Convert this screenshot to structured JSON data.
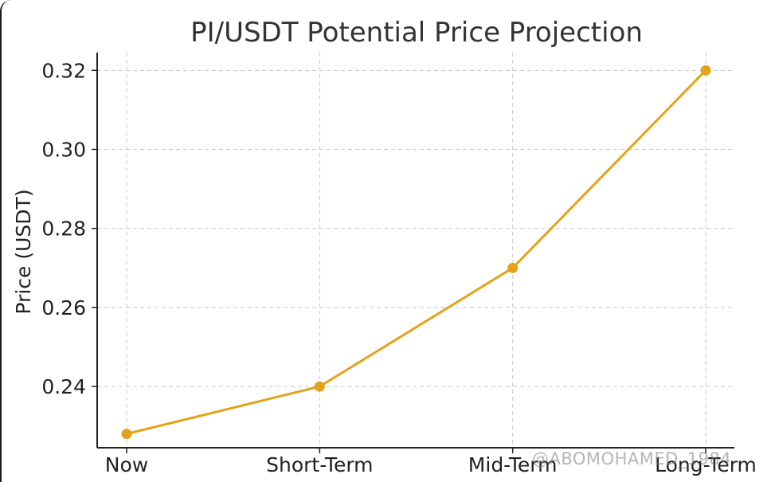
{
  "chart_data": {
    "type": "line",
    "title": "PI/USDT Potential Price Projection",
    "xlabel": "",
    "ylabel": "Price (USDT)",
    "categories": [
      "Now",
      "Short-Term",
      "Mid-Term",
      "Long-Term"
    ],
    "series": [
      {
        "values": [
          0.228,
          0.24,
          0.27,
          0.32
        ],
        "color": "#E3A21A"
      }
    ],
    "yticks": [
      "0.24",
      "0.26",
      "0.28",
      "0.30",
      "0.32"
    ],
    "ytick_values": [
      0.24,
      0.26,
      0.28,
      0.3,
      0.32
    ],
    "ylim": [
      0.2245,
      0.3245
    ],
    "grid": true,
    "marker": "circle"
  },
  "watermark": "@ABOMOHAMED_1984"
}
